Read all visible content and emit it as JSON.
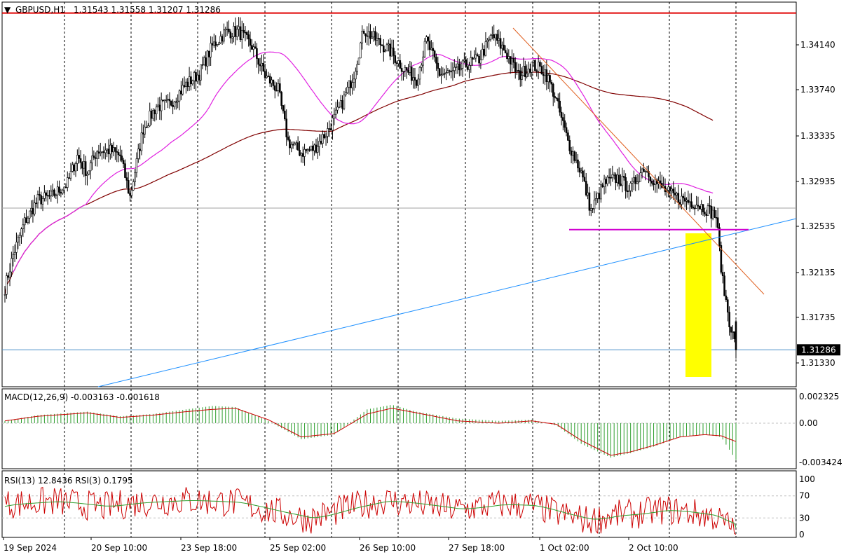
{
  "header": {
    "symbol_label": "GBPUSD,H1",
    "ohlc_text": "1.31543 1.31558 1.31207 1.31286"
  },
  "price_axis": {
    "ticks": [
      "1.34140",
      "1.33740",
      "1.33335",
      "1.32935",
      "1.32535",
      "1.32135",
      "1.31735",
      "1.31330"
    ],
    "current_price": "1.31286"
  },
  "macd": {
    "title": "MACD(12,26,9) -0.003163 -0.001618",
    "ticks": [
      "0.002325",
      "0.00",
      "-0.003424"
    ]
  },
  "rsi": {
    "title": "RSI(13) 12.8436 RSI(3) 0.1795",
    "ticks": [
      "100",
      "70",
      "30",
      "0"
    ]
  },
  "time_axis": {
    "labels": [
      "19 Sep 2024",
      "20 Sep 10:00",
      "23 Sep 18:00",
      "25 Sep 02:00",
      "26 Sep 10:00",
      "27 Sep 18:00",
      "1 Oct 02:00",
      "2 Oct 10:00"
    ]
  },
  "colors": {
    "candle": "#000000",
    "resistance_line": "#e00000",
    "ma_short": "#e020e0",
    "ma_long": "#800000",
    "trendline_up": "#1e90ff",
    "trendline_down": "#e06020",
    "support_line": "#d000d0",
    "highlight": "#ffff00",
    "macd_hist": "#2e9e2e",
    "macd_signal": "#cc0000",
    "rsi_fast": "#cc0000",
    "rsi_slow": "#2e9e2e"
  },
  "chart_data": {
    "type": "candlestick",
    "symbol": "GBPUSD",
    "timeframe": "H1",
    "ylim": [
      1.3095,
      1.3445
    ],
    "last": {
      "open": 1.31543,
      "high": 1.31558,
      "low": 1.31207,
      "close": 1.31286
    },
    "resistance_level": 1.3435,
    "support_level": 1.3238,
    "price_path": [
      [
        0,
        1.3185
      ],
      [
        5,
        1.3215
      ],
      [
        12,
        1.3245
      ],
      [
        20,
        1.3265
      ],
      [
        28,
        1.3268
      ],
      [
        38,
        1.328
      ],
      [
        44,
        1.3305
      ],
      [
        50,
        1.329
      ],
      [
        56,
        1.331
      ],
      [
        64,
        1.331
      ],
      [
        70,
        1.3305
      ],
      [
        76,
        1.3268
      ],
      [
        84,
        1.333
      ],
      [
        92,
        1.335
      ],
      [
        100,
        1.3352
      ],
      [
        110,
        1.337
      ],
      [
        118,
        1.338
      ],
      [
        126,
        1.3405
      ],
      [
        134,
        1.3418
      ],
      [
        142,
        1.3418
      ],
      [
        150,
        1.3405
      ],
      [
        158,
        1.3378
      ],
      [
        166,
        1.3365
      ],
      [
        172,
        1.3318
      ],
      [
        180,
        1.3308
      ],
      [
        188,
        1.3312
      ],
      [
        196,
        1.3328
      ],
      [
        204,
        1.335
      ],
      [
        212,
        1.338
      ],
      [
        218,
        1.342
      ],
      [
        226,
        1.341
      ],
      [
        234,
        1.34
      ],
      [
        242,
        1.3385
      ],
      [
        250,
        1.3375
      ],
      [
        256,
        1.341
      ],
      [
        264,
        1.338
      ],
      [
        272,
        1.338
      ],
      [
        280,
        1.3388
      ],
      [
        288,
        1.3393
      ],
      [
        296,
        1.3415
      ],
      [
        304,
        1.34
      ],
      [
        312,
        1.3378
      ],
      [
        320,
        1.3388
      ],
      [
        328,
        1.3382
      ],
      [
        334,
        1.336
      ],
      [
        342,
        1.3318
      ],
      [
        350,
        1.329
      ],
      [
        356,
        1.3255
      ],
      [
        364,
        1.328
      ],
      [
        372,
        1.3285
      ],
      [
        380,
        1.3275
      ],
      [
        388,
        1.3295
      ],
      [
        396,
        1.328
      ],
      [
        404,
        1.327
      ],
      [
        412,
        1.3265
      ],
      [
        420,
        1.3262
      ],
      [
        428,
        1.3255
      ],
      [
        432,
        1.325
      ],
      [
        436,
        1.319
      ],
      [
        440,
        1.3155
      ],
      [
        444,
        1.3129
      ]
    ],
    "macd_path": [
      [
        0,
        0.0002
      ],
      [
        20,
        0.0007
      ],
      [
        50,
        0.001
      ],
      [
        70,
        0.0006
      ],
      [
        90,
        0.0008
      ],
      [
        110,
        0.0012
      ],
      [
        126,
        0.0015
      ],
      [
        140,
        0.0014
      ],
      [
        160,
        0.0002
      ],
      [
        180,
        -0.0014
      ],
      [
        200,
        -0.001
      ],
      [
        220,
        0.0012
      ],
      [
        235,
        0.0016
      ],
      [
        250,
        0.001
      ],
      [
        275,
        0.0004
      ],
      [
        300,
        0.0002
      ],
      [
        320,
        0.0003
      ],
      [
        335,
        -0.0002
      ],
      [
        350,
        -0.0018
      ],
      [
        368,
        -0.003
      ],
      [
        380,
        -0.0026
      ],
      [
        395,
        -0.002
      ],
      [
        410,
        -0.0012
      ],
      [
        425,
        -0.001
      ],
      [
        435,
        -0.0012
      ],
      [
        444,
        -0.0032
      ]
    ],
    "signal_path": [
      [
        0,
        0.0002
      ],
      [
        20,
        0.0006
      ],
      [
        50,
        0.0009
      ],
      [
        70,
        0.0005
      ],
      [
        90,
        0.0007
      ],
      [
        110,
        0.001
      ],
      [
        126,
        0.0012
      ],
      [
        140,
        0.0013
      ],
      [
        160,
        0.0003
      ],
      [
        180,
        -0.0012
      ],
      [
        200,
        -0.0009
      ],
      [
        220,
        0.0008
      ],
      [
        235,
        0.0013
      ],
      [
        250,
        0.0009
      ],
      [
        275,
        0.0002
      ],
      [
        300,
        0.0
      ],
      [
        320,
        0.0002
      ],
      [
        335,
        -0.0001
      ],
      [
        350,
        -0.0015
      ],
      [
        368,
        -0.0028
      ],
      [
        380,
        -0.0025
      ],
      [
        395,
        -0.0019
      ],
      [
        410,
        -0.0012
      ],
      [
        425,
        -0.001
      ],
      [
        435,
        -0.0011
      ],
      [
        444,
        -0.0016
      ]
    ],
    "rsi13_path": [
      [
        0,
        55
      ],
      [
        30,
        60
      ],
      [
        60,
        50
      ],
      [
        80,
        58
      ],
      [
        110,
        62
      ],
      [
        140,
        58
      ],
      [
        165,
        40
      ],
      [
        185,
        28
      ],
      [
        210,
        50
      ],
      [
        230,
        62
      ],
      [
        250,
        55
      ],
      [
        275,
        45
      ],
      [
        300,
        55
      ],
      [
        320,
        52
      ],
      [
        340,
        35
      ],
      [
        355,
        25
      ],
      [
        370,
        35
      ],
      [
        385,
        38
      ],
      [
        400,
        45
      ],
      [
        415,
        40
      ],
      [
        430,
        33
      ],
      [
        437,
        20
      ],
      [
        444,
        13
      ]
    ]
  }
}
